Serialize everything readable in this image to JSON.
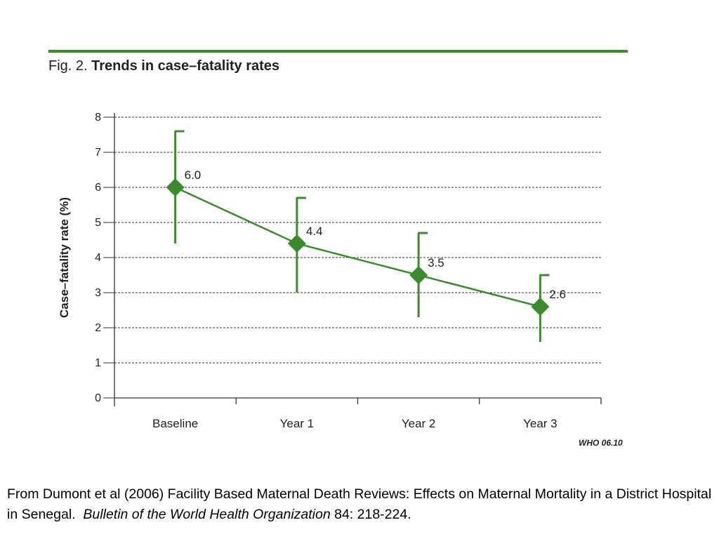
{
  "figure": {
    "label": "Fig. 2.",
    "title": "Trends in case–fatality rates",
    "credit": "WHO 06.10",
    "accent_color": "#3b8a2e"
  },
  "chart_data": {
    "type": "line",
    "title": "Trends in case–fatality rates",
    "xlabel": "",
    "ylabel": "Case–fatality rate (%)",
    "categories": [
      "Baseline",
      "Year 1",
      "Year 2",
      "Year 3"
    ],
    "series": [
      {
        "values": [
          6.0,
          4.4,
          3.5,
          2.6
        ],
        "value_labels": [
          "6.0",
          "4.4",
          "3.5",
          "2.6"
        ],
        "error_upper": [
          7.6,
          5.7,
          4.7,
          3.5
        ],
        "error_lower": [
          4.4,
          3.0,
          2.3,
          1.6
        ],
        "color": "#3b8a2e",
        "marker": "diamond"
      }
    ],
    "ylim": [
      0,
      8
    ],
    "yticks": [
      "0",
      "1",
      "2",
      "3",
      "4",
      "5",
      "6",
      "7",
      "8"
    ],
    "grid": "horizontal-dashed"
  },
  "caption": {
    "text_before": "From Dumont et al (2006) Facility Based Maternal Death Reviews: Effects on Maternal Mortality in a District Hospital in Senegal.  ",
    "journal": "Bulletin of the World Health Organization",
    "text_after": " 84: 218-224."
  }
}
